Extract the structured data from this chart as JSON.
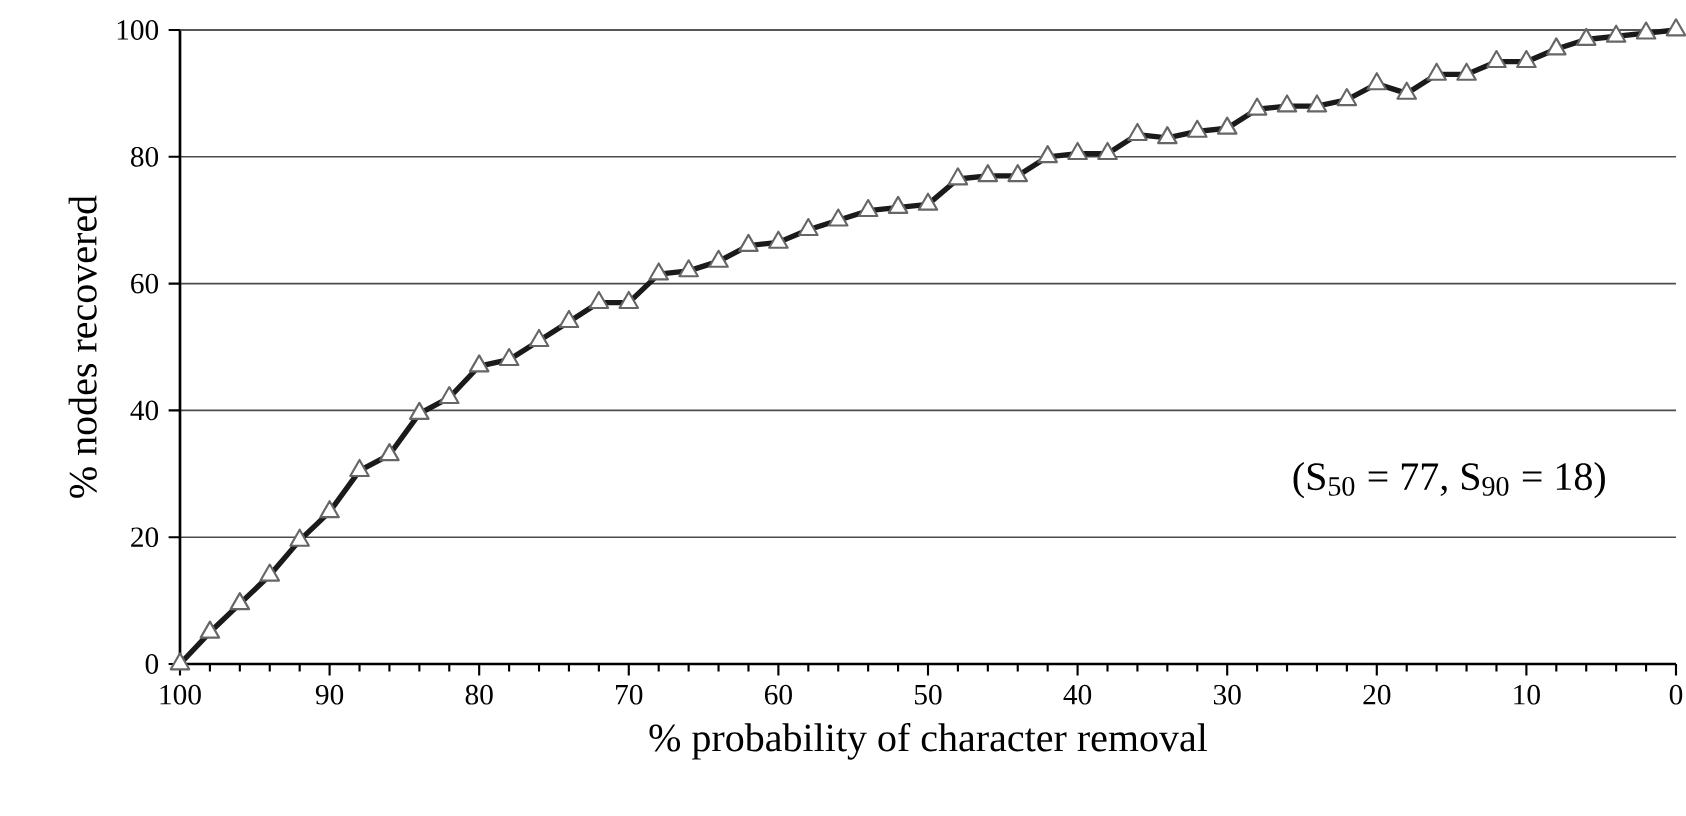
{
  "chart_data": {
    "type": "line",
    "xlabel": "% probability of character removal",
    "ylabel": "% nodes recovered",
    "annotations": [
      "(S$_{50}$ = 77, S$_{90}$ = 18)"
    ],
    "x": [
      100,
      98,
      96,
      94,
      92,
      90,
      88,
      86,
      84,
      82,
      80,
      78,
      76,
      74,
      72,
      70,
      68,
      66,
      64,
      62,
      60,
      58,
      56,
      54,
      52,
      50,
      48,
      46,
      44,
      42,
      40,
      38,
      36,
      34,
      32,
      30,
      28,
      26,
      24,
      22,
      20,
      18,
      16,
      14,
      12,
      10,
      8,
      6,
      4,
      2,
      0
    ],
    "series": [
      {
        "color": "#1a1a1a",
        "values": [
          0,
          5,
          9.5,
          14,
          19.5,
          24,
          30.5,
          33,
          39.5,
          42,
          47,
          48,
          51,
          54,
          57,
          57,
          61.5,
          62,
          63.5,
          66,
          66.5,
          68.5,
          70,
          71.5,
          72,
          72.5,
          76.5,
          77,
          77,
          80,
          80.5,
          80.5,
          83.5,
          83,
          84,
          84.5,
          87.5,
          88,
          88,
          89,
          91.5,
          90,
          93,
          93,
          95,
          95,
          97,
          98.5,
          99,
          99.5,
          100
        ]
      }
    ],
    "xlim": [
      100,
      0
    ],
    "ylim": [
      0,
      100
    ],
    "xticks": [
      100,
      90,
      80,
      70,
      60,
      50,
      40,
      30,
      20,
      10,
      0
    ],
    "yticks": [
      0,
      20,
      40,
      60,
      80,
      100
    ],
    "grid": "y",
    "marker": "triangle",
    "line_style": "solid"
  }
}
